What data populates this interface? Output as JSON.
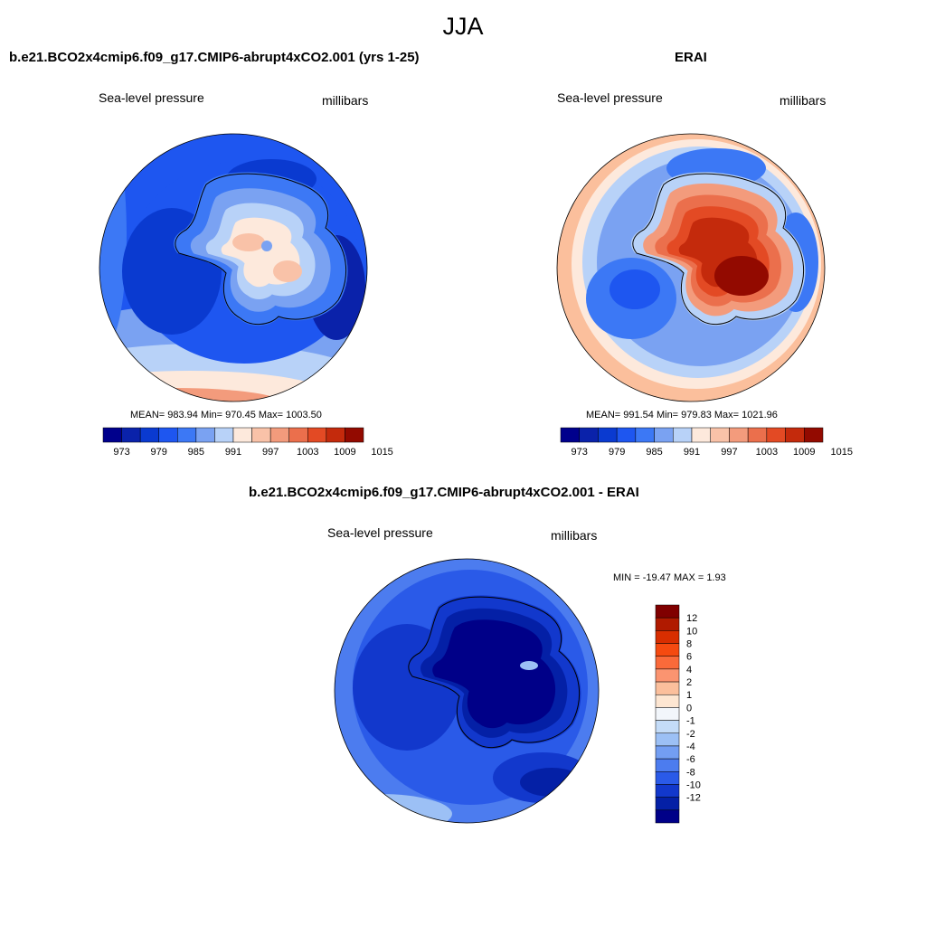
{
  "figure": {
    "title": "JJA"
  },
  "chart_data": [
    {
      "type": "heatmap",
      "projection": "south-polar-stereographic",
      "title": "b.e21.BCO2x4cmip6.f09_g17.CMIP6-abrupt4xCO2.001 (yrs 1-25)",
      "left_string": "Sea-level pressure",
      "right_string": "millibars",
      "stats": "MEAN= 983.94  Min= 970.45  Max= 1003.50",
      "mean": 983.94,
      "min": 970.45,
      "max": 1003.5,
      "colorbar": {
        "orientation": "horizontal",
        "colors": [
          "#00008c",
          "#0a22aa",
          "#0a3ad0",
          "#1e56f0",
          "#3c78f5",
          "#7aa2f2",
          "#b8d2f8",
          "#fde9dc",
          "#f9c2a8",
          "#f39b7c",
          "#eb6f4c",
          "#e34a24",
          "#c42a0c",
          "#930a00"
        ],
        "ticks": [
          "973",
          "979",
          "985",
          "991",
          "997",
          "1003",
          "1009",
          "1015"
        ]
      }
    },
    {
      "type": "heatmap",
      "projection": "south-polar-stereographic",
      "title": "ERAI",
      "left_string": "Sea-level pressure",
      "right_string": "millibars",
      "stats": "MEAN= 991.54  Min= 979.83  Max= 1021.96",
      "mean": 991.54,
      "min": 979.83,
      "max": 1021.96,
      "colorbar": {
        "orientation": "horizontal",
        "colors": [
          "#00008c",
          "#0a22aa",
          "#0a3ad0",
          "#1e56f0",
          "#3c78f5",
          "#7aa2f2",
          "#b8d2f8",
          "#fde9dc",
          "#f9c2a8",
          "#f39b7c",
          "#eb6f4c",
          "#e34a24",
          "#c42a0c",
          "#930a00"
        ],
        "ticks": [
          "973",
          "979",
          "985",
          "991",
          "997",
          "1003",
          "1009",
          "1015"
        ]
      }
    },
    {
      "type": "heatmap",
      "projection": "south-polar-stereographic",
      "title": "b.e21.BCO2x4cmip6.f09_g17.CMIP6-abrupt4xCO2.001 - ERAI",
      "left_string": "Sea-level pressure",
      "right_string": "millibars",
      "stats": "MIN = -19.47 MAX =   1.93",
      "min": -19.47,
      "max": 1.93,
      "colorbar": {
        "orientation": "vertical",
        "colors": [
          "#800000",
          "#b01a00",
          "#d82e00",
          "#f54a10",
          "#fa6a3a",
          "#fb9470",
          "#fbbf9c",
          "#fde6d2",
          "#f2f6fb",
          "#c4dcf8",
          "#9cc0f5",
          "#739ef2",
          "#4c7cef",
          "#2a5ae8",
          "#1238cc",
          "#0420a6",
          "#000088"
        ],
        "ticks": [
          "12",
          "10",
          "8",
          "6",
          "4",
          "2",
          "1",
          "0",
          "-1",
          "-2",
          "-4",
          "-6",
          "-8",
          "-10",
          "-12"
        ]
      }
    }
  ],
  "colors": {
    "continent_outline": "#000000",
    "globe_outline": "#000000"
  }
}
